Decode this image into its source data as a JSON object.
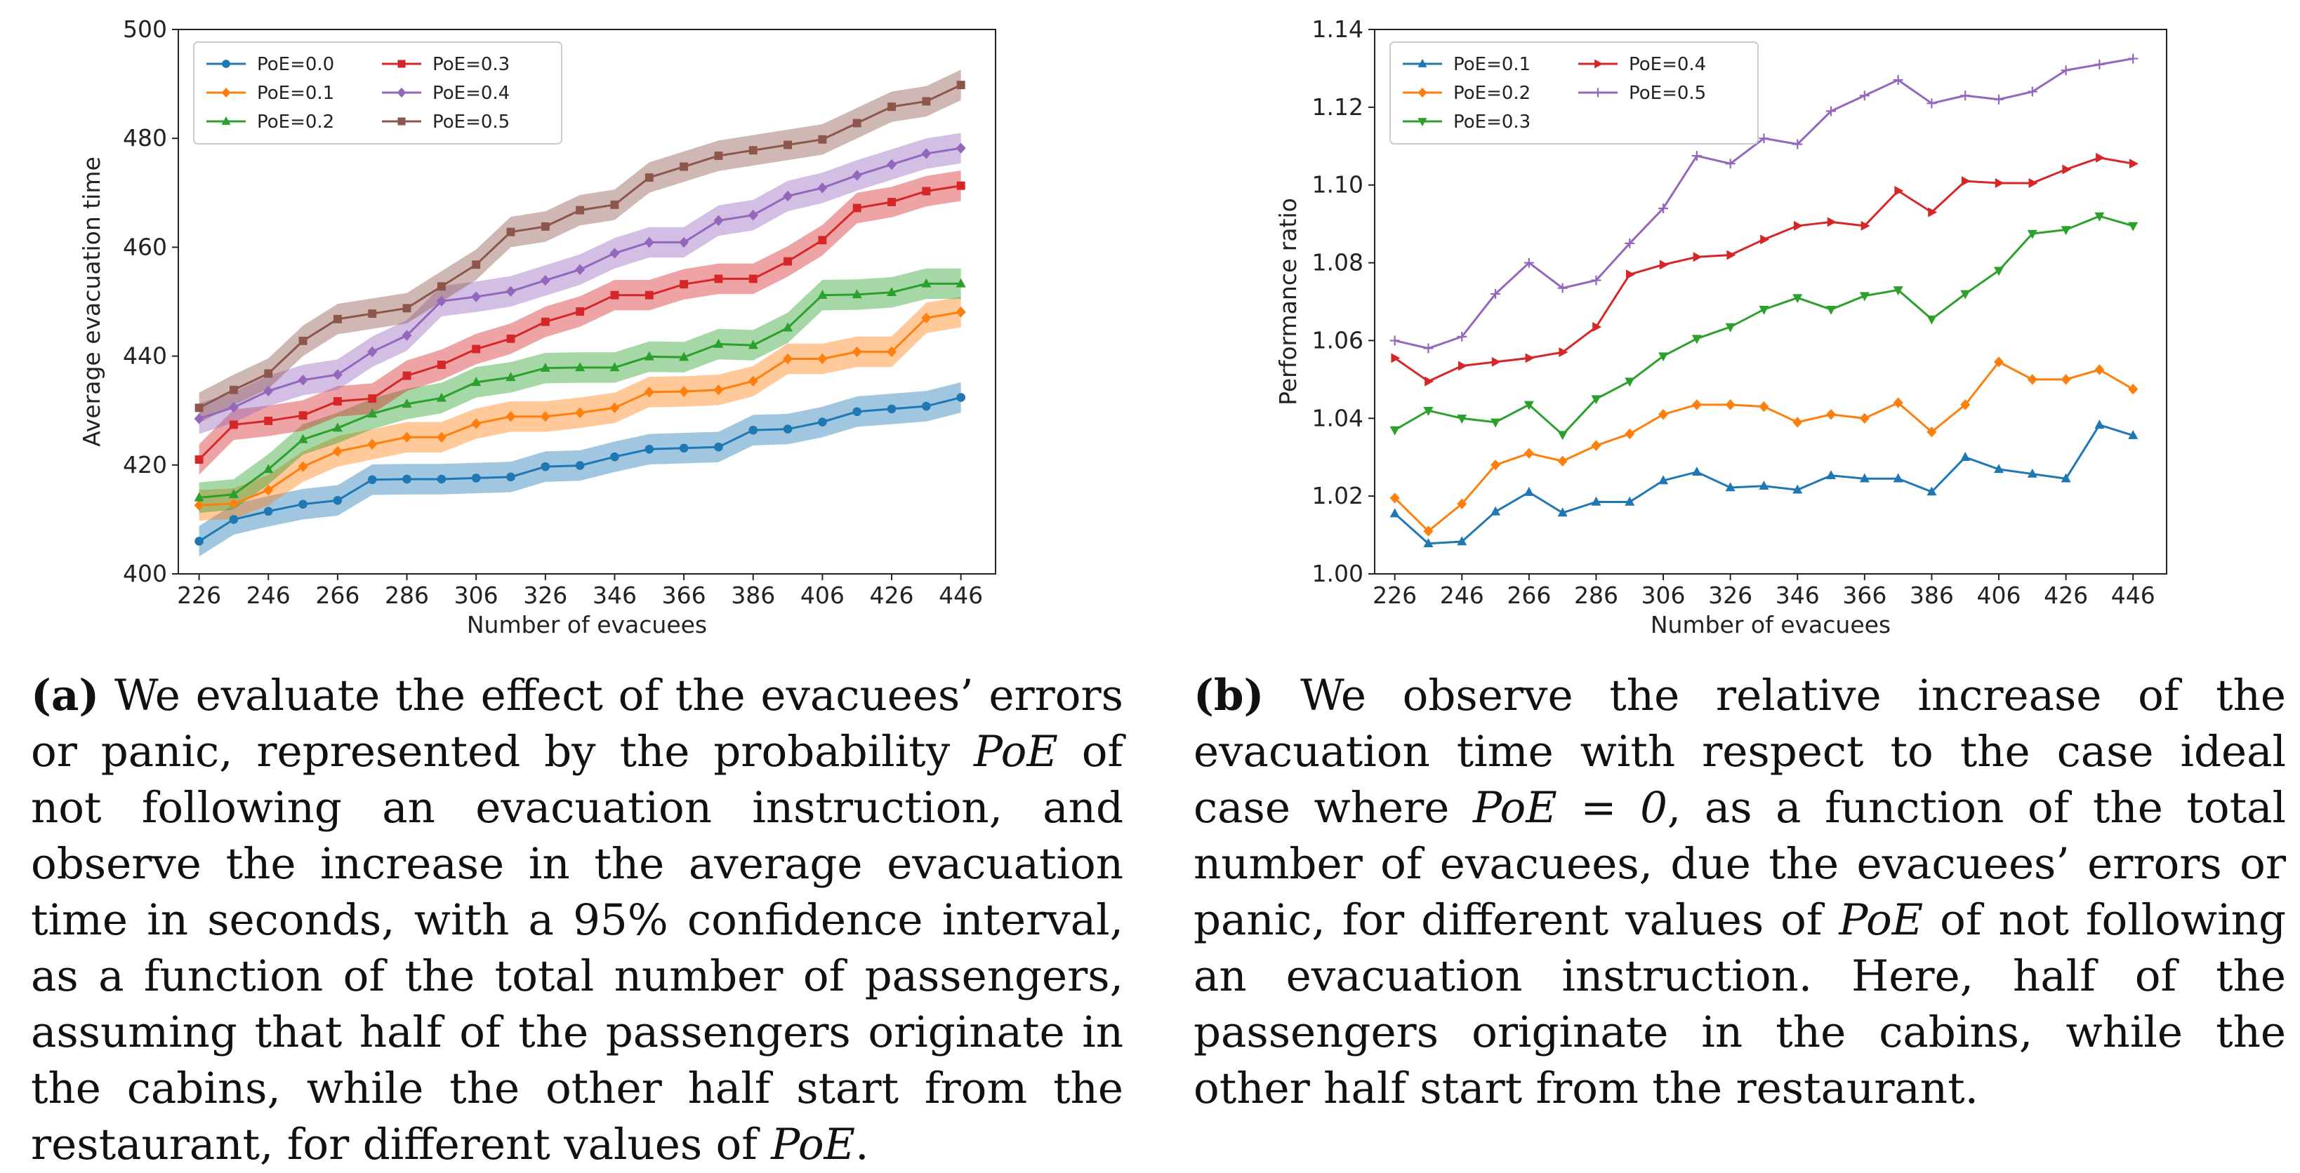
{
  "chart_data": [
    {
      "id": "a",
      "type": "line",
      "xlabel": "Number of evacuees",
      "ylabel": "Average evacuation time",
      "xticks": [
        226,
        246,
        266,
        286,
        306,
        326,
        346,
        366,
        386,
        406,
        426,
        446
      ],
      "yticks": [
        400,
        420,
        440,
        460,
        480,
        500
      ],
      "xlim": [
        220,
        456
      ],
      "ylim": [
        400,
        500
      ],
      "band_halfwidth": 2.8,
      "legend": {
        "location": "top-left",
        "columns": 2
      },
      "x": [
        226,
        236,
        246,
        256,
        266,
        276,
        286,
        296,
        306,
        316,
        326,
        336,
        346,
        356,
        366,
        376,
        386,
        396,
        406,
        416,
        426,
        436,
        446
      ],
      "series": [
        {
          "name": "PoE=0.0",
          "color": "#1f77b4",
          "marker": "circle",
          "values": [
            406,
            410,
            411.5,
            412.8,
            413.5,
            417.3,
            417.4,
            417.4,
            417.6,
            417.8,
            419.7,
            419.9,
            421.5,
            422.9,
            423.1,
            423.3,
            426.4,
            426.6,
            427.9,
            429.8,
            430.3,
            430.8,
            432.4
          ]
        },
        {
          "name": "PoE=0.1",
          "color": "#ff7f0e",
          "marker": "diamond",
          "values": [
            412.6,
            412.9,
            415.4,
            419.7,
            422.5,
            423.8,
            425.1,
            425.1,
            427.6,
            428.9,
            428.9,
            429.6,
            430.5,
            433.4,
            433.5,
            433.8,
            435.4,
            439.5,
            439.5,
            440.8,
            440.8,
            447,
            448.1
          ]
        },
        {
          "name": "PoE=0.2",
          "color": "#2ca02c",
          "marker": "triangle-up",
          "values": [
            414,
            414.6,
            419.2,
            424.7,
            426.8,
            429.4,
            431.2,
            432.3,
            435.2,
            436.1,
            437.8,
            437.9,
            437.9,
            439.9,
            439.8,
            442.2,
            442,
            445.2,
            451.2,
            451.3,
            451.7,
            453.3,
            453.3
          ]
        },
        {
          "name": "PoE=0.3",
          "color": "#d62728",
          "marker": "square",
          "values": [
            421,
            427.4,
            428.1,
            429.1,
            431.7,
            432.2,
            436.4,
            438.4,
            441.3,
            443.2,
            446.3,
            448.2,
            451.2,
            451.2,
            453.2,
            454.2,
            454.2,
            457.4,
            461.3,
            467.2,
            468.3,
            470.3,
            471.3
          ]
        },
        {
          "name": "PoE=0.4",
          "color": "#9467bd",
          "marker": "diamond",
          "values": [
            428.5,
            430.6,
            433.6,
            435.6,
            436.6,
            440.8,
            443.8,
            450.1,
            450.9,
            451.9,
            453.9,
            455.9,
            458.9,
            460.9,
            460.9,
            464.9,
            465.9,
            469.4,
            470.9,
            473.2,
            475.2,
            477.2,
            478.2
          ]
        },
        {
          "name": "PoE=0.5",
          "color": "#8c564b",
          "marker": "square",
          "values": [
            430.5,
            433.8,
            436.8,
            442.8,
            446.8,
            447.8,
            448.8,
            452.8,
            456.8,
            462.8,
            463.8,
            466.8,
            467.8,
            472.8,
            474.8,
            476.8,
            477.8,
            478.8,
            479.8,
            482.8,
            485.8,
            486.8,
            489.8
          ]
        }
      ]
    },
    {
      "id": "b",
      "type": "line",
      "xlabel": "Number of evacuees",
      "ylabel": "Performance ratio",
      "xticks": [
        226,
        246,
        266,
        286,
        306,
        326,
        346,
        366,
        386,
        406,
        426,
        446
      ],
      "yticks": [
        "1.00",
        "1.02",
        "1.04",
        "1.06",
        "1.08",
        "1.10",
        "1.12",
        "1.14"
      ],
      "xlim": [
        220,
        456
      ],
      "ylim": [
        1.0,
        1.14
      ],
      "legend": {
        "location": "top-left",
        "columns": 2
      },
      "x": [
        226,
        236,
        246,
        256,
        266,
        276,
        286,
        296,
        306,
        316,
        326,
        336,
        346,
        356,
        366,
        376,
        386,
        396,
        406,
        416,
        426,
        436,
        446
      ],
      "series": [
        {
          "name": "PoE=0.1",
          "color": "#1f77b4",
          "marker": "triangle-up",
          "values": [
            1.0155,
            1.0078,
            1.0083,
            1.016,
            1.021,
            1.0157,
            1.0185,
            1.0185,
            1.024,
            1.0262,
            1.0222,
            1.0226,
            1.0216,
            1.0253,
            1.0245,
            1.0245,
            1.0211,
            1.03,
            1.0269,
            1.0257,
            1.0245,
            1.0383,
            1.0356
          ]
        },
        {
          "name": "PoE=0.2",
          "color": "#ff7f0e",
          "marker": "diamond",
          "values": [
            1.0195,
            1.011,
            1.018,
            1.028,
            1.031,
            1.029,
            1.033,
            1.036,
            1.041,
            1.0435,
            1.0435,
            1.043,
            1.039,
            1.041,
            1.04,
            1.044,
            1.0365,
            1.0435,
            1.0545,
            1.05,
            1.05,
            1.0525,
            1.0475
          ]
        },
        {
          "name": "PoE=0.3",
          "color": "#2ca02c",
          "marker": "triangle-down",
          "values": [
            1.037,
            1.042,
            1.04,
            1.039,
            1.0435,
            1.0358,
            1.045,
            1.0495,
            1.056,
            1.0605,
            1.0635,
            1.068,
            1.071,
            1.068,
            1.0715,
            1.073,
            1.0655,
            1.072,
            1.078,
            1.0875,
            1.0885,
            1.092,
            1.0895
          ]
        },
        {
          "name": "PoE=0.4",
          "color": "#d62728",
          "marker": "triangle-right",
          "values": [
            1.0555,
            1.0495,
            1.0535,
            1.0545,
            1.0555,
            1.057,
            1.0635,
            1.077,
            1.0795,
            1.0815,
            1.082,
            1.086,
            1.0895,
            1.0905,
            1.0895,
            1.0985,
            1.093,
            1.101,
            1.1005,
            1.1005,
            1.104,
            1.107,
            1.1055
          ]
        },
        {
          "name": "PoE=0.5",
          "color": "#9467bd",
          "marker": "thin-cross",
          "values": [
            1.06,
            1.058,
            1.061,
            1.072,
            1.08,
            1.0735,
            1.0755,
            1.085,
            1.094,
            1.1075,
            1.1055,
            1.112,
            1.1105,
            1.119,
            1.123,
            1.127,
            1.121,
            1.123,
            1.122,
            1.124,
            1.1295,
            1.131,
            1.1325
          ]
        }
      ]
    }
  ],
  "captions": {
    "a": {
      "label": "(a)",
      "pre": " We evaluate the effect of the evacuees’ errors or panic, represented by the probability ",
      "math1": "PoE",
      "mid": " of not following an evacuation instruction, and observe the increase in the average evacuation time in seconds, with a 95% confidence interval, as a function of the total number of passengers, assuming that half of the passengers originate in the cabins, while the other half start from the restaurant, for different values of ",
      "math2": "PoE",
      "post": "."
    },
    "b": {
      "label": "(b)",
      "pre": " We observe the relative increase of the evacuation time with respect to the case ideal case where ",
      "math1": "PoE = 0",
      "mid": ", as a function of the total number of evacuees, due the evacuees’ errors or panic, for different values of ",
      "math2": "PoE",
      "post": " of not following an evacuation instruction. Here, half of the passengers originate in the cabins, while the other half start from the restaurant."
    }
  }
}
